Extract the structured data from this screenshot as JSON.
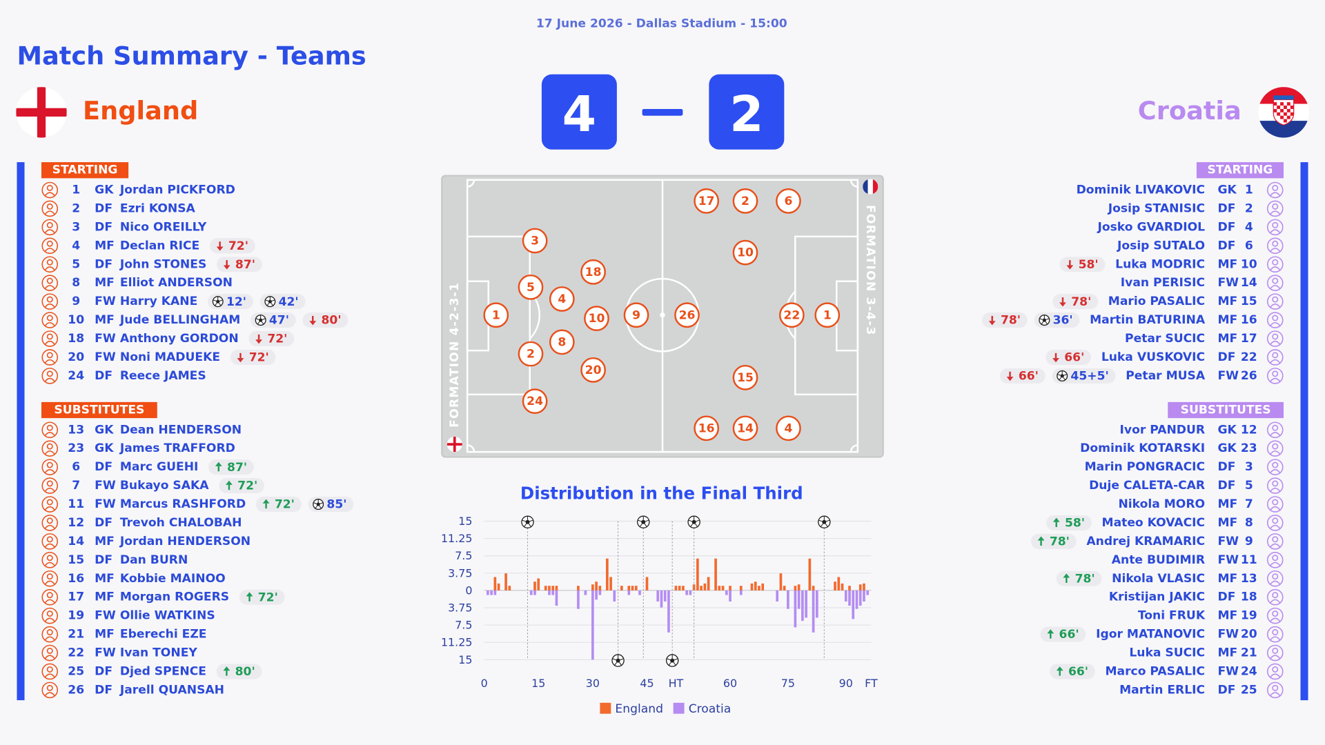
{
  "header": {
    "date": "17 June 2026 - Dallas Stadium - 15:00",
    "title": "Match Summary - Teams"
  },
  "teams": {
    "home": {
      "name": "England"
    },
    "away": {
      "name": "Croatia"
    }
  },
  "score": {
    "home": 4,
    "away": 2
  },
  "lineups": {
    "home": {
      "starting_label": "STARTING",
      "starting": [
        {
          "number": 1,
          "position": "GK",
          "name": "Jordan PICKFORD"
        },
        {
          "number": 2,
          "position": "DF",
          "name": "Ezri KONSA"
        },
        {
          "number": 3,
          "position": "DF",
          "name": "Nico OREILLY"
        },
        {
          "number": 4,
          "position": "MF",
          "name": "Declan RICE",
          "events": [
            {
              "type": "out",
              "time": "72'"
            }
          ]
        },
        {
          "number": 5,
          "position": "DF",
          "name": "John STONES",
          "events": [
            {
              "type": "out",
              "time": "87'"
            }
          ]
        },
        {
          "number": 8,
          "position": "MF",
          "name": "Elliot ANDERSON"
        },
        {
          "number": 9,
          "position": "FW",
          "name": "Harry KANE",
          "events": [
            {
              "type": "goal",
              "time": "12'"
            },
            {
              "type": "goal",
              "time": "42'"
            }
          ]
        },
        {
          "number": 10,
          "position": "MF",
          "name": "Jude BELLINGHAM",
          "events": [
            {
              "type": "goal",
              "time": "47'"
            },
            {
              "type": "out",
              "time": "80'"
            }
          ]
        },
        {
          "number": 18,
          "position": "FW",
          "name": "Anthony GORDON",
          "events": [
            {
              "type": "out",
              "time": "72'"
            }
          ]
        },
        {
          "number": 20,
          "position": "FW",
          "name": "Noni MADUEKE",
          "events": [
            {
              "type": "out",
              "time": "72'"
            }
          ]
        },
        {
          "number": 24,
          "position": "DF",
          "name": "Reece JAMES"
        }
      ],
      "subs_label": "SUBSTITUTES",
      "subs": [
        {
          "number": 13,
          "position": "GK",
          "name": "Dean HENDERSON"
        },
        {
          "number": 23,
          "position": "GK",
          "name": "James TRAFFORD"
        },
        {
          "number": 6,
          "position": "DF",
          "name": "Marc GUEHI",
          "events": [
            {
              "type": "in",
              "time": "87'"
            }
          ]
        },
        {
          "number": 7,
          "position": "FW",
          "name": "Bukayo SAKA",
          "events": [
            {
              "type": "in",
              "time": "72'"
            }
          ]
        },
        {
          "number": 11,
          "position": "FW",
          "name": "Marcus RASHFORD",
          "events": [
            {
              "type": "in",
              "time": "72'"
            },
            {
              "type": "goal",
              "time": "85'"
            }
          ]
        },
        {
          "number": 12,
          "position": "DF",
          "name": "Trevoh CHALOBAH"
        },
        {
          "number": 14,
          "position": "MF",
          "name": "Jordan HENDERSON"
        },
        {
          "number": 15,
          "position": "DF",
          "name": "Dan BURN"
        },
        {
          "number": 16,
          "position": "MF",
          "name": "Kobbie MAINOO"
        },
        {
          "number": 17,
          "position": "MF",
          "name": "Morgan ROGERS",
          "events": [
            {
              "type": "in",
              "time": "72'"
            }
          ]
        },
        {
          "number": 19,
          "position": "FW",
          "name": "Ollie WATKINS"
        },
        {
          "number": 21,
          "position": "MF",
          "name": "Eberechi EZE"
        },
        {
          "number": 22,
          "position": "FW",
          "name": "Ivan TONEY"
        },
        {
          "number": 25,
          "position": "DF",
          "name": "Djed SPENCE",
          "events": [
            {
              "type": "in",
              "time": "80'"
            }
          ]
        },
        {
          "number": 26,
          "position": "DF",
          "name": "Jarell QUANSAH"
        }
      ]
    },
    "away": {
      "starting_label": "STARTING",
      "starting": [
        {
          "number": 1,
          "position": "GK",
          "name": "Dominik LIVAKOVIC"
        },
        {
          "number": 2,
          "position": "DF",
          "name": "Josip STANISIC"
        },
        {
          "number": 4,
          "position": "DF",
          "name": "Josko GVARDIOL"
        },
        {
          "number": 6,
          "position": "DF",
          "name": "Josip SUTALO"
        },
        {
          "number": 10,
          "position": "MF",
          "name": "Luka MODRIC",
          "events": [
            {
              "type": "out",
              "time": "58'"
            }
          ]
        },
        {
          "number": 14,
          "position": "FW",
          "name": "Ivan PERISIC"
        },
        {
          "number": 15,
          "position": "MF",
          "name": "Mario PASALIC",
          "events": [
            {
              "type": "out",
              "time": "78'"
            }
          ]
        },
        {
          "number": 16,
          "position": "MF",
          "name": "Martin BATURINA",
          "events": [
            {
              "type": "out",
              "time": "78'"
            },
            {
              "type": "goal",
              "time": "36'"
            }
          ]
        },
        {
          "number": 17,
          "position": "MF",
          "name": "Petar SUCIC"
        },
        {
          "number": 22,
          "position": "DF",
          "name": "Luka VUSKOVIC",
          "events": [
            {
              "type": "out",
              "time": "66'"
            }
          ]
        },
        {
          "number": 26,
          "position": "FW",
          "name": "Petar MUSA",
          "events": [
            {
              "type": "out",
              "time": "66'"
            },
            {
              "type": "goal",
              "time": "45+5'"
            }
          ]
        }
      ],
      "subs_label": "SUBSTITUTES",
      "subs": [
        {
          "number": 12,
          "position": "GK",
          "name": "Ivor PANDUR"
        },
        {
          "number": 23,
          "position": "GK",
          "name": "Dominik KOTARSKI"
        },
        {
          "number": 3,
          "position": "DF",
          "name": "Marin PONGRACIC"
        },
        {
          "number": 5,
          "position": "DF",
          "name": "Duje CALETA-CAR"
        },
        {
          "number": 7,
          "position": "MF",
          "name": "Nikola MORO"
        },
        {
          "number": 8,
          "position": "MF",
          "name": "Mateo KOVACIC",
          "events": [
            {
              "type": "in",
              "time": "58'"
            }
          ]
        },
        {
          "number": 9,
          "position": "FW",
          "name": "Andrej KRAMARIC",
          "events": [
            {
              "type": "in",
              "time": "78'"
            }
          ]
        },
        {
          "number": 11,
          "position": "FW",
          "name": "Ante BUDIMIR"
        },
        {
          "number": 13,
          "position": "MF",
          "name": "Nikola VLASIC",
          "events": [
            {
              "type": "in",
              "time": "78'"
            }
          ]
        },
        {
          "number": 18,
          "position": "DF",
          "name": "Kristijan JAKIC"
        },
        {
          "number": 19,
          "position": "MF",
          "name": "Toni FRUK"
        },
        {
          "number": 20,
          "position": "FW",
          "name": "Igor MATANOVIC",
          "events": [
            {
              "type": "in",
              "time": "66'"
            }
          ]
        },
        {
          "number": 21,
          "position": "MF",
          "name": "Luka SUCIC"
        },
        {
          "number": 24,
          "position": "FW",
          "name": "Marco PASALIC",
          "events": [
            {
              "type": "in",
              "time": "66'"
            }
          ]
        },
        {
          "number": 25,
          "position": "DF",
          "name": "Martin ERLIC"
        }
      ]
    }
  },
  "pitch": {
    "home": {
      "formation": "FORMATION 4-2-3-1",
      "players": [
        1,
        3,
        5,
        4,
        2,
        24,
        18,
        10,
        8,
        20,
        9
      ]
    },
    "away": {
      "formation": "FORMATION 3-4-3",
      "players": [
        26,
        17,
        2,
        6,
        10,
        22,
        1,
        15,
        16,
        14,
        4
      ]
    }
  },
  "chart_data": {
    "type": "bar",
    "title": "Distribution in the Final Third",
    "categories": [
      "0",
      null,
      null,
      null,
      null,
      null,
      null,
      null,
      null,
      null,
      null,
      null,
      null,
      null,
      null,
      "15",
      null,
      null,
      null,
      null,
      null,
      null,
      null,
      null,
      null,
      null,
      null,
      null,
      null,
      null,
      "30",
      null,
      null,
      null,
      null,
      null,
      null,
      null,
      null,
      null,
      null,
      null,
      null,
      null,
      null,
      "45",
      null,
      null,
      null,
      null,
      null,
      null,
      null,
      "HT",
      null,
      null,
      null,
      null,
      null,
      null,
      null,
      null,
      null,
      null,
      null,
      null,
      null,
      null,
      "60",
      null,
      null,
      null,
      null,
      null,
      null,
      null,
      null,
      null,
      null,
      null,
      null,
      null,
      null,
      null,
      "75",
      null,
      null,
      null,
      null,
      null,
      null,
      null,
      null,
      null,
      null,
      null,
      null,
      null,
      null,
      null,
      "90",
      null,
      null,
      null,
      null,
      null,
      null,
      "FT"
    ],
    "series": [
      {
        "name": "England",
        "color": "#f26a2e",
        "goals": [
          12,
          44,
          58,
          94
        ],
        "values": [
          null,
          null,
          null,
          2.9,
          1.5,
          null,
          3.7,
          1,
          null,
          null,
          null,
          null,
          null,
          null,
          1.9,
          2.6,
          null,
          1,
          1,
          1,
          1,
          null,
          null,
          null,
          null,
          null,
          1,
          null,
          null,
          null,
          1.3,
          1.9,
          1,
          null,
          6.9,
          2.9,
          null,
          null,
          1,
          null,
          1,
          1,
          1,
          null,
          null,
          2.9,
          null,
          null,
          null,
          null,
          null,
          null,
          null,
          1,
          1,
          1,
          null,
          null,
          1.3,
          6.9,
          1,
          1.5,
          2.9,
          null,
          6.9,
          1,
          1,
          null,
          1,
          null,
          null,
          1,
          null,
          null,
          1.5,
          1.9,
          1,
          1.5,
          null,
          null,
          null,
          null,
          3.7,
          1,
          null,
          null,
          1,
          1.3,
          null,
          null,
          6.9,
          1,
          null,
          null,
          null,
          null,
          null,
          1.9,
          2.9,
          1.5,
          null,
          1,
          null,
          null,
          1.3,
          1.5,
          null,
          null
        ]
      },
      {
        "name": "Croatia",
        "color": "#b48cf2",
        "goals": [
          37,
          52
        ],
        "values": [
          null,
          -1,
          -1,
          -1,
          null,
          null,
          null,
          null,
          null,
          null,
          null,
          null,
          null,
          -1,
          -1,
          null,
          null,
          null,
          -1,
          -1,
          -3.3,
          null,
          null,
          null,
          null,
          null,
          -4,
          null,
          -1,
          null,
          -15,
          -2,
          -1,
          null,
          null,
          null,
          -2.4,
          null,
          null,
          null,
          -1,
          null,
          null,
          -1,
          null,
          null,
          null,
          null,
          -2.4,
          -3.7,
          -2.4,
          -9.1,
          null,
          null,
          null,
          null,
          -1,
          -1,
          null,
          null,
          null,
          null,
          null,
          null,
          null,
          null,
          null,
          -1,
          -2.4,
          null,
          null,
          -1,
          null,
          null,
          null,
          null,
          null,
          null,
          null,
          null,
          null,
          -2.4,
          null,
          null,
          -4,
          null,
          -8,
          -4,
          -6.6,
          -5.9,
          null,
          -9.1,
          -5.9,
          null,
          null,
          null,
          null,
          null,
          null,
          null,
          -2.4,
          -3.3,
          -6.2,
          -4,
          -3.3,
          -2.4,
          -1,
          null
        ]
      }
    ],
    "ylim": [
      -15,
      15
    ],
    "yticks": [
      {
        "value": -15,
        "label": "15"
      },
      {
        "value": -11.25,
        "label": "11.25"
      },
      {
        "value": -7.5,
        "label": "7.5"
      },
      {
        "value": -3.75,
        "label": "3.75"
      },
      0,
      3.75,
      7.5,
      11.25,
      15
    ],
    "grid": true,
    "legend": "bottom"
  }
}
